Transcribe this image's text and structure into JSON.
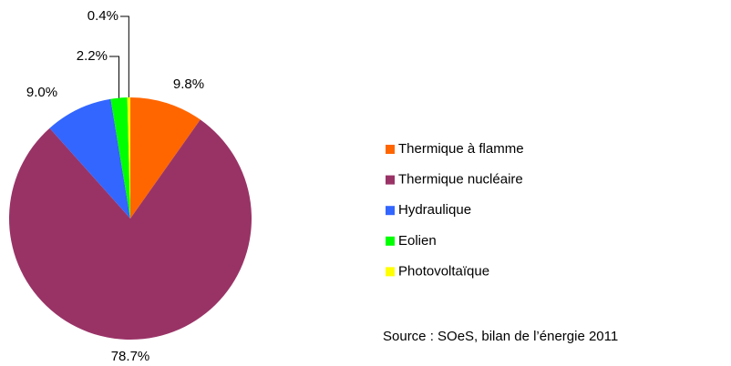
{
  "chart_data": {
    "type": "pie",
    "categories": [
      "Thermique à flamme",
      "Thermique nucléaire",
      "Hydraulique",
      "Eolien",
      "Photovoltaïque"
    ],
    "values": [
      9.8,
      78.7,
      9.0,
      2.2,
      0.4
    ],
    "value_labels": [
      "9.8%",
      "78.7%",
      "9.0%",
      "2.2%",
      "0.4%"
    ],
    "colors": [
      "#ff6600",
      "#993366",
      "#3366ff",
      "#00ff00",
      "#ffff00"
    ],
    "source": "Source : SOeS, bilan de l’énergie 2011"
  }
}
